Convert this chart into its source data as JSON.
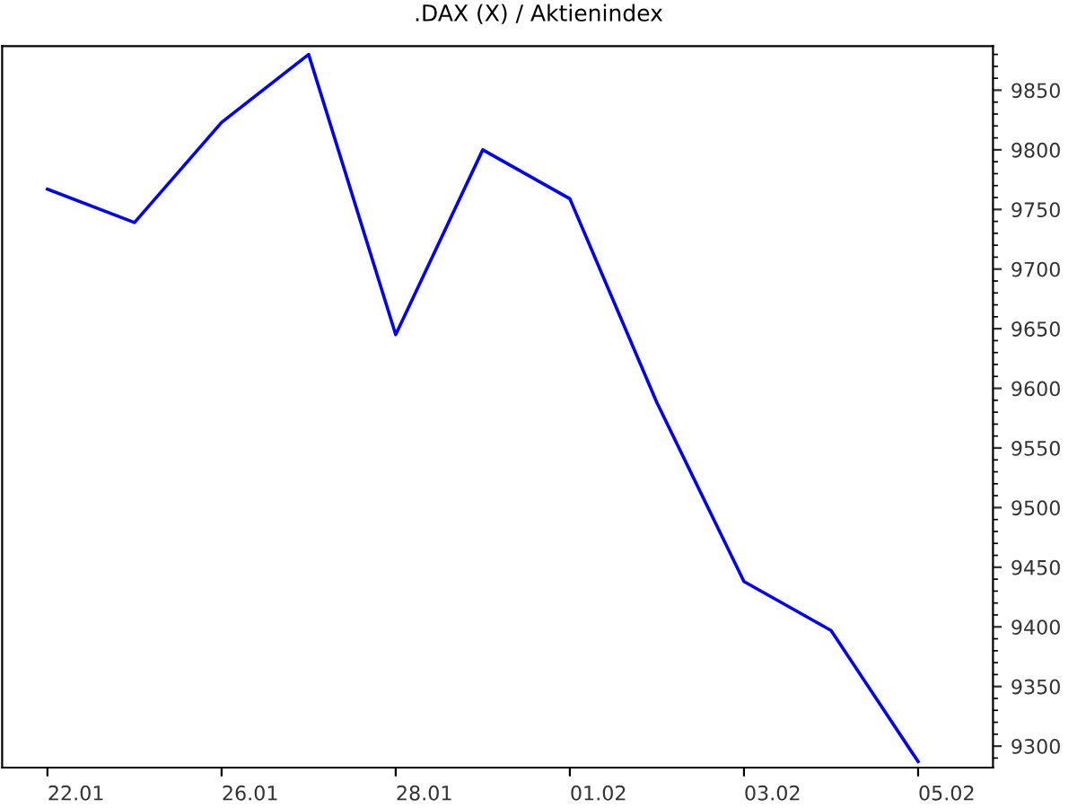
{
  "chart_data": {
    "type": "line",
    "title": ".DAX (X) / Aktienindex",
    "categories": [
      "22.01",
      null,
      "26.01",
      null,
      "28.01",
      null,
      "01.02",
      null,
      "03.02",
      null,
      "05.02"
    ],
    "series": [
      {
        "color": "#0000ff",
        "values": [
          9767,
          9739,
          9823,
          9880,
          9645,
          9800,
          9759,
          9588,
          9438,
          9397,
          9287
        ]
      }
    ],
    "ylim": [
      9282,
      9887
    ],
    "yticks": [
      9300,
      9350,
      9400,
      9450,
      9500,
      9550,
      9600,
      9650,
      9700,
      9750,
      9800,
      9850
    ],
    "marker": "none",
    "line_style": "solid"
  }
}
